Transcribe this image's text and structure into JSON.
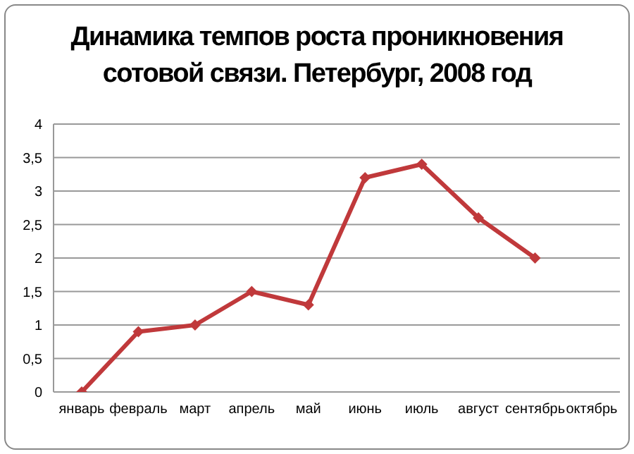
{
  "chart_data": {
    "type": "line",
    "title": "Динамика темпов роста проникновения сотовой связи. Петербург, 2008 год",
    "categories": [
      "январь",
      "февраль",
      "март",
      "апрель",
      "май",
      "июнь",
      "июль",
      "август",
      "сентябрь",
      "октябрь"
    ],
    "series": [
      {
        "color": "#c0393b",
        "values": [
          0,
          0.9,
          1.0,
          1.5,
          1.3,
          3.2,
          3.4,
          2.6,
          2.0,
          null
        ]
      }
    ],
    "ylim": [
      0,
      4
    ],
    "yticks": [
      0,
      {
        "value": 0.5,
        "label": "0,5"
      },
      1,
      {
        "value": 1.5,
        "label": "1,5"
      },
      2,
      {
        "value": 2.5,
        "label": "2,5"
      },
      3,
      {
        "value": 3.5,
        "label": "3,5"
      },
      4
    ],
    "grid": "y",
    "marker": "diamond",
    "line_style": "solid",
    "legend": false
  }
}
